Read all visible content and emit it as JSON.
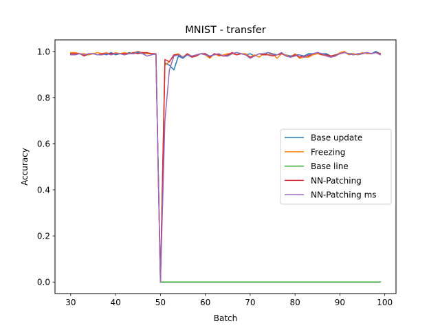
{
  "chart_data": {
    "type": "line",
    "title": "MNIST - transfer",
    "xlabel": "Batch",
    "ylabel": "Accuracy",
    "xlim": [
      26.5,
      102.5
    ],
    "ylim": [
      -0.05,
      1.05
    ],
    "xticks": [
      30,
      40,
      50,
      60,
      70,
      80,
      90,
      100
    ],
    "yticks": [
      0.0,
      0.2,
      0.4,
      0.6,
      0.8,
      1.0
    ],
    "grid": false,
    "legend_position": "center-right",
    "series": [
      {
        "name": "Base update",
        "color": "#1f77b4",
        "x": [
          30,
          31,
          32,
          33,
          34,
          35,
          36,
          37,
          38,
          39,
          40,
          41,
          42,
          43,
          44,
          45,
          46,
          47,
          48,
          49,
          50,
          51,
          52,
          53,
          54,
          55,
          56,
          57,
          58,
          59,
          60,
          61,
          62,
          63,
          64,
          65,
          66,
          67,
          68,
          69,
          70,
          71,
          72,
          73,
          74,
          75,
          76,
          77,
          78,
          79,
          80,
          81,
          82,
          83,
          84,
          85,
          86,
          87,
          88,
          89,
          90,
          91,
          92,
          93,
          94,
          95,
          96,
          97,
          98,
          99
        ],
        "y": [
          0.99,
          0.99,
          0.99,
          0.985,
          0.985,
          0.99,
          0.985,
          0.99,
          0.985,
          0.995,
          0.985,
          0.99,
          0.985,
          0.995,
          0.99,
          0.995,
          0.99,
          0.99,
          0.99,
          0.99,
          0.0,
          0.95,
          0.94,
          0.92,
          0.98,
          0.97,
          0.985,
          0.975,
          0.985,
          0.99,
          0.99,
          0.98,
          0.985,
          0.99,
          0.98,
          0.98,
          0.99,
          0.995,
          0.99,
          0.985,
          0.99,
          0.98,
          0.99,
          0.985,
          0.995,
          0.99,
          0.985,
          0.99,
          0.985,
          0.98,
          0.985,
          0.985,
          0.98,
          0.99,
          0.99,
          0.995,
          0.99,
          0.99,
          0.98,
          0.985,
          0.99,
          0.995,
          0.99,
          0.99,
          0.985,
          0.99,
          0.995,
          0.99,
          1.0,
          0.99
        ]
      },
      {
        "name": "Freezing",
        "color": "#ff7f0e",
        "x": [
          30,
          31,
          32,
          33,
          34,
          35,
          36,
          37,
          38,
          39,
          40,
          41,
          42,
          43,
          44,
          45,
          46,
          47,
          48,
          49,
          50,
          51,
          52,
          53,
          54,
          55,
          56,
          57,
          58,
          59,
          60,
          61,
          62,
          63,
          64,
          65,
          66,
          67,
          68,
          69,
          70,
          71,
          72,
          73,
          74,
          75,
          76,
          77,
          78,
          79,
          80,
          81,
          82,
          83,
          84,
          85,
          86,
          87,
          88,
          89,
          90,
          91,
          92,
          93,
          94,
          95,
          96,
          97,
          98,
          99
        ],
        "y": [
          0.995,
          0.995,
          0.99,
          0.99,
          0.985,
          0.99,
          0.995,
          0.99,
          0.995,
          0.985,
          0.995,
          0.99,
          0.995,
          0.99,
          0.995,
          1.0,
          0.995,
          0.99,
          0.99,
          0.985,
          0.0,
          0.94,
          0.955,
          0.985,
          0.99,
          0.975,
          0.99,
          0.98,
          0.985,
          0.99,
          0.985,
          0.97,
          0.99,
          0.98,
          0.985,
          0.99,
          0.99,
          0.985,
          0.99,
          0.99,
          0.975,
          0.985,
          0.975,
          0.99,
          0.985,
          0.99,
          0.97,
          0.99,
          0.985,
          0.975,
          0.99,
          0.97,
          0.975,
          0.975,
          0.985,
          0.99,
          0.985,
          0.98,
          0.975,
          0.98,
          0.995,
          1.0,
          0.985,
          0.99,
          0.985,
          0.995,
          0.99,
          0.99,
          0.995,
          0.99
        ]
      },
      {
        "name": "Base line",
        "color": "#2ca02c",
        "x": [
          50,
          51,
          52,
          53,
          54,
          55,
          56,
          57,
          58,
          59,
          60,
          61,
          62,
          63,
          64,
          65,
          66,
          67,
          68,
          69,
          70,
          71,
          72,
          73,
          74,
          75,
          76,
          77,
          78,
          79,
          80,
          81,
          82,
          83,
          84,
          85,
          86,
          87,
          88,
          89,
          90,
          91,
          92,
          93,
          94,
          95,
          96,
          97,
          98,
          99
        ],
        "y": [
          0,
          0,
          0,
          0,
          0,
          0,
          0,
          0,
          0,
          0,
          0,
          0,
          0,
          0,
          0,
          0,
          0,
          0,
          0,
          0,
          0,
          0,
          0,
          0,
          0,
          0,
          0,
          0,
          0,
          0,
          0,
          0,
          0,
          0,
          0,
          0,
          0,
          0,
          0,
          0,
          0,
          0,
          0,
          0,
          0,
          0,
          0,
          0,
          0,
          0
        ]
      },
      {
        "name": "NN-Patching",
        "color": "#d62728",
        "x": [
          30,
          31,
          32,
          33,
          34,
          35,
          36,
          37,
          38,
          39,
          40,
          41,
          42,
          43,
          44,
          45,
          46,
          47,
          48,
          49,
          50,
          51,
          52,
          53,
          54,
          55,
          56,
          57,
          58,
          59,
          60,
          61,
          62,
          63,
          64,
          65,
          66,
          67,
          68,
          69,
          70,
          71,
          72,
          73,
          74,
          75,
          76,
          77,
          78,
          79,
          80,
          81,
          82,
          83,
          84,
          85,
          86,
          87,
          88,
          89,
          90,
          91,
          92,
          93,
          94,
          95,
          96,
          97,
          98,
          99
        ],
        "y": [
          0.99,
          0.99,
          0.99,
          0.98,
          0.99,
          0.99,
          0.985,
          0.99,
          0.99,
          0.99,
          0.99,
          0.99,
          0.99,
          0.99,
          0.995,
          0.99,
          0.995,
          0.995,
          0.99,
          0.99,
          0.0,
          0.965,
          0.955,
          0.985,
          0.985,
          0.975,
          0.99,
          0.975,
          0.98,
          0.99,
          0.99,
          0.975,
          0.99,
          0.985,
          0.98,
          0.985,
          0.995,
          0.985,
          0.99,
          0.985,
          0.975,
          0.98,
          0.99,
          0.985,
          0.985,
          0.98,
          0.985,
          0.99,
          0.98,
          0.975,
          0.985,
          0.975,
          0.98,
          0.98,
          0.99,
          0.995,
          0.985,
          0.985,
          0.98,
          0.985,
          0.99,
          0.995,
          0.99,
          0.985,
          0.99,
          0.99,
          0.995,
          0.99,
          0.995,
          0.99
        ]
      },
      {
        "name": "NN-Patching ms",
        "color": "#9467bd",
        "x": [
          30,
          31,
          32,
          33,
          34,
          35,
          36,
          37,
          38,
          39,
          40,
          41,
          42,
          43,
          44,
          45,
          46,
          47,
          48,
          49,
          50,
          51,
          52,
          53,
          54,
          55,
          56,
          57,
          58,
          59,
          60,
          61,
          62,
          63,
          64,
          65,
          66,
          67,
          68,
          69,
          70,
          71,
          72,
          73,
          74,
          75,
          76,
          77,
          78,
          79,
          80,
          81,
          82,
          83,
          84,
          85,
          86,
          87,
          88,
          89,
          90,
          91,
          92,
          93,
          94,
          95,
          96,
          97,
          98,
          99
        ],
        "y": [
          0.985,
          0.985,
          0.99,
          0.985,
          0.99,
          0.99,
          0.985,
          0.985,
          0.99,
          0.985,
          0.99,
          0.99,
          0.985,
          0.99,
          0.99,
          1.0,
          0.99,
          0.98,
          0.985,
          0.99,
          0.0,
          0.7,
          0.92,
          0.98,
          0.985,
          0.975,
          0.985,
          0.98,
          0.985,
          0.99,
          0.985,
          0.98,
          0.985,
          0.99,
          0.98,
          0.98,
          0.99,
          0.995,
          0.99,
          0.985,
          0.97,
          0.98,
          0.99,
          0.99,
          0.995,
          0.985,
          0.985,
          0.995,
          0.98,
          0.975,
          0.98,
          0.985,
          0.975,
          0.985,
          0.99,
          0.995,
          0.99,
          0.98,
          0.975,
          0.98,
          0.99,
          0.995,
          0.99,
          0.985,
          0.99,
          0.99,
          0.995,
          0.99,
          0.995,
          0.985
        ]
      }
    ]
  }
}
